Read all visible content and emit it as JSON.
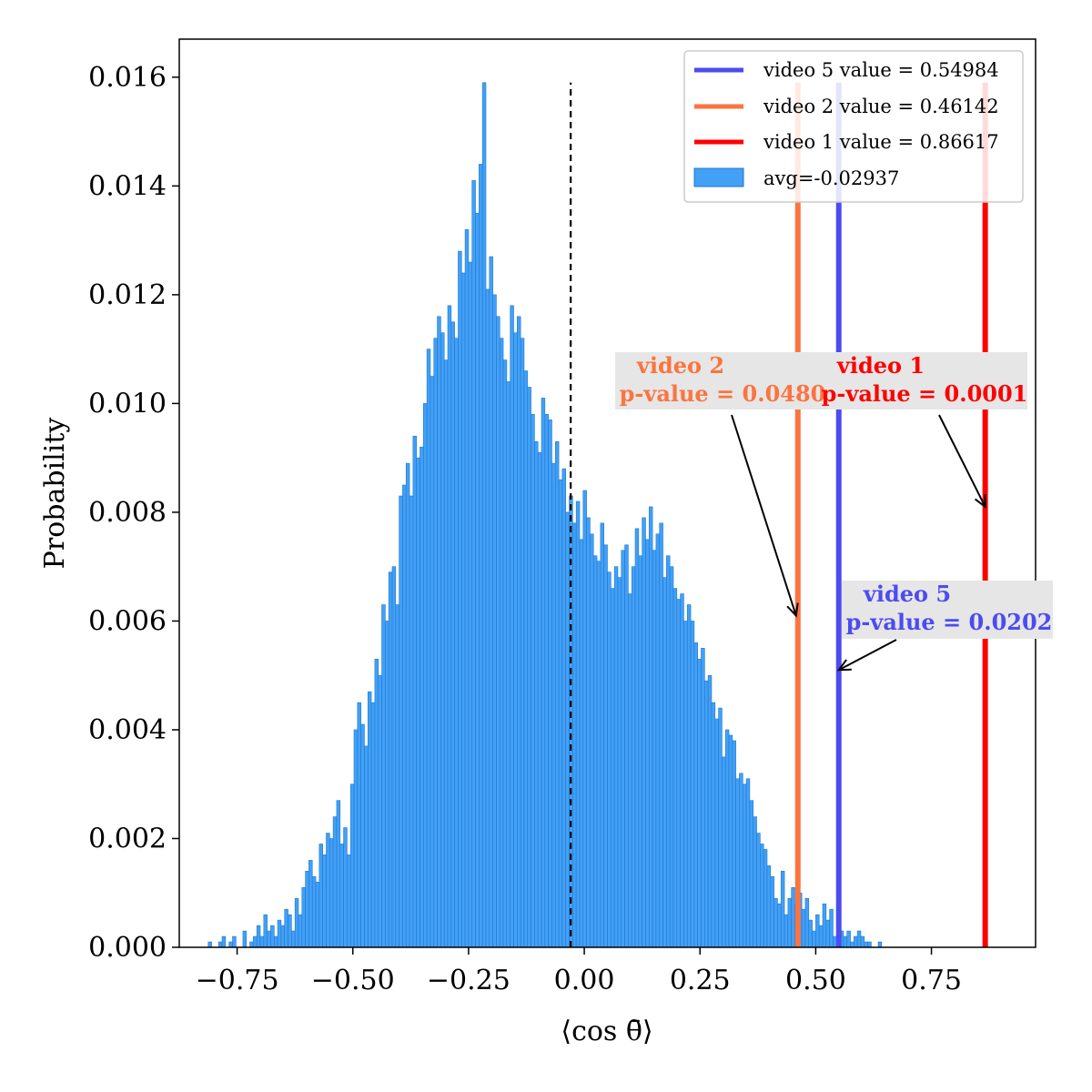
{
  "chart_data": {
    "type": "bar",
    "xlabel": "⟨cos θ̄⟩",
    "ylabel": "Probability",
    "xlim": [
      -0.875,
      0.975
    ],
    "ylim": [
      0,
      0.0167
    ],
    "xticks": [
      -0.75,
      -0.5,
      -0.25,
      0.0,
      0.25,
      0.5,
      0.75
    ],
    "xtick_labels": [
      "−0.75",
      "−0.50",
      "−0.25",
      "0.00",
      "0.25",
      "0.50",
      "0.75"
    ],
    "yticks": [
      0,
      0.002,
      0.004,
      0.006,
      0.008,
      0.01,
      0.012,
      0.014,
      0.016
    ],
    "ytick_labels": [
      "0.000",
      "0.002",
      "0.004",
      "0.006",
      "0.008",
      "0.010",
      "0.012",
      "0.014",
      "0.016"
    ],
    "grid": false,
    "legend_position": "top-right",
    "histogram": {
      "name": "avg=-0.02937",
      "color": "#42a0f5",
      "edge_color": "#1f77d4",
      "bin_start": -0.8125,
      "bin_width": 0.0075,
      "values": [
        0.0001,
        0,
        0,
        0.0001,
        0.0002,
        0,
        0.0001,
        0.0002,
        0,
        0,
        0.0003,
        0,
        0.0001,
        0.0002,
        0.0004,
        0.0002,
        0.0006,
        0.0003,
        0.0004,
        0.0002,
        0.0005,
        0.0004,
        0.0007,
        0.0006,
        0.0003,
        0.0009,
        0.0006,
        0.0011,
        0.0014,
        0.0016,
        0.0013,
        0.0012,
        0.0019,
        0.0017,
        0.0021,
        0.002,
        0.0024,
        0.0027,
        0.0019,
        0.0022,
        0.0017,
        0.003,
        0.004,
        0.0045,
        0.0041,
        0.0037,
        0.0047,
        0.0045,
        0.0053,
        0.005,
        0.0063,
        0.006,
        0.0069,
        0.007,
        0.0063,
        0.0083,
        0.0085,
        0.0089,
        0.0083,
        0.0094,
        0.009,
        0.0092,
        0.01,
        0.011,
        0.0105,
        0.0112,
        0.0116,
        0.0113,
        0.0108,
        0.0118,
        0.0115,
        0.0112,
        0.0128,
        0.0124,
        0.0132,
        0.0126,
        0.0141,
        0.0135,
        0.0144,
        0.0159,
        0.0121,
        0.0127,
        0.012,
        0.0116,
        0.0112,
        0.0108,
        0.0104,
        0.0118,
        0.0113,
        0.0116,
        0.0112,
        0.0106,
        0.0103,
        0.0098,
        0.0093,
        0.0091,
        0.0101,
        0.0098,
        0.0097,
        0.0089,
        0.0093,
        0.0086,
        0.0088,
        0.008,
        0.0083,
        0.0078,
        0.0082,
        0.0075,
        0.0084,
        0.0079,
        0.0076,
        0.0072,
        0.0071,
        0.0078,
        0.0074,
        0.0069,
        0.0066,
        0.007,
        0.0068,
        0.0073,
        0.0074,
        0.0065,
        0.007,
        0.0077,
        0.0072,
        0.0079,
        0.0075,
        0.0081,
        0.0073,
        0.0076,
        0.0078,
        0.0068,
        0.0072,
        0.007,
        0.0066,
        0.0064,
        0.0065,
        0.006,
        0.0063,
        0.006,
        0.0056,
        0.0053,
        0.0055,
        0.0049,
        0.005,
        0.0045,
        0.0042,
        0.0044,
        0.0035,
        0.004,
        0.0039,
        0.0038,
        0.0031,
        0.0032,
        0.003,
        0.0031,
        0.0027,
        0.0024,
        0.0021,
        0.0019,
        0.0018,
        0.0015,
        0.0013,
        0.0009,
        0.0008,
        0.0014,
        0.0006,
        0.0009,
        0.0011,
        0.0008,
        0.001,
        0.0007,
        0.0009,
        0.0005,
        0.0003,
        0.0006,
        0.0004,
        0.0008,
        0.0005,
        0.0007,
        0.0002,
        0.0004,
        0.0003,
        0.0002,
        0.0003,
        0.0001,
        0.0002,
        0.0003,
        0.0002,
        0.0001,
        0.0001,
        0,
        0,
        0.0001
      ]
    },
    "mean_line": {
      "x": -0.02937,
      "y_top": 0.0159,
      "style": "dashed",
      "color": "#000000"
    },
    "vlines": [
      {
        "name": "video 5 value = 0.54984",
        "x": 0.54984,
        "color": "#4c4cf0",
        "y_top": 0.0159
      },
      {
        "name": "video 2 value = 0.46142",
        "x": 0.46142,
        "color": "#fb7440",
        "y_top": 0.0159
      },
      {
        "name": "video 1 value = 0.86617",
        "x": 0.86617,
        "color": "#ff0000",
        "y_top": 0.0159
      }
    ],
    "annotations": [
      {
        "line1": "video 2",
        "line2": "p-value = 0.0480",
        "color": "#fb7440",
        "arrow_to": [
          0.46142,
          0.0061
        ]
      },
      {
        "line1": "video 1",
        "line2": "p-value = 0.0001",
        "color": "#ff0000",
        "arrow_to": [
          0.86617,
          0.0081
        ]
      },
      {
        "line1": "video 5",
        "line2": "p-value = 0.0202",
        "color": "#4c4cf0",
        "arrow_to": [
          0.55,
          0.0051
        ]
      }
    ],
    "legend": [
      {
        "label": "video 5 value = 0.54984",
        "kind": "line",
        "color": "#4c4cf0"
      },
      {
        "label": "video 2 value = 0.46142",
        "kind": "line",
        "color": "#fb7440"
      },
      {
        "label": "video 1 value = 0.86617",
        "kind": "line",
        "color": "#ff0000"
      },
      {
        "label": "avg=-0.02937",
        "kind": "patch",
        "color": "#42a0f5"
      }
    ]
  }
}
